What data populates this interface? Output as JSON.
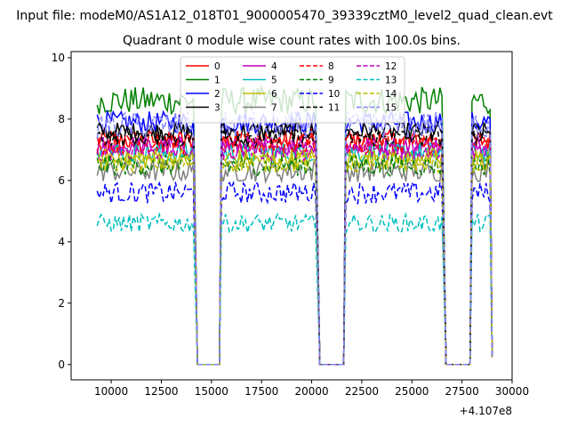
{
  "chart_data": {
    "type": "line",
    "suptitle": "Input file: modeM0/AS1A12_018T01_9000005470_39339cztM0_level2_quad_clean.evt",
    "title": "Quadrant 0 module wise count rates with 100.0s bins.",
    "xlabel": "",
    "ylabel": "",
    "x_offset_label": "+4.107e8",
    "xlim": [
      8000,
      30000
    ],
    "ylim": [
      -0.5,
      10.2
    ],
    "xticks": [
      10000,
      12500,
      15000,
      17500,
      20000,
      22500,
      25000,
      27500,
      30000
    ],
    "xtick_labels": [
      "10000",
      "12500",
      "15000",
      "17500",
      "20000",
      "22500",
      "25000",
      "27500",
      "30000"
    ],
    "yticks": [
      0,
      2,
      4,
      6,
      8,
      10
    ],
    "ytick_labels": [
      "0",
      "2",
      "4",
      "6",
      "8",
      "10"
    ],
    "grid": false,
    "legend_position": "upper-center",
    "legend_columns": 4,
    "segments": [
      {
        "start": 9300,
        "end": 14100,
        "edge_end": 14300,
        "zero_start": 14300
      },
      {
        "zero_end": 15400,
        "start": 15500,
        "end": 20200,
        "edge_end": 20400,
        "zero_start": 20400
      },
      {
        "zero_end": 21600,
        "start": 21700,
        "end": 26500,
        "edge_end": 26700,
        "zero_start": 26700
      },
      {
        "zero_end": 27900,
        "start": 28000,
        "end": 28900,
        "edge_end": 29000
      }
    ],
    "series": [
      {
        "name": "0",
        "color": "#ff0000",
        "dash": "solid",
        "level": 7.3,
        "noise": 0.35
      },
      {
        "name": "1",
        "color": "#008000",
        "dash": "solid",
        "level": 8.6,
        "noise": 0.45
      },
      {
        "name": "2",
        "color": "#0000ff",
        "dash": "solid",
        "level": 7.9,
        "noise": 0.35
      },
      {
        "name": "3",
        "color": "#000000",
        "dash": "solid",
        "level": 7.6,
        "noise": 0.3
      },
      {
        "name": "4",
        "color": "#bf00bf",
        "dash": "solid",
        "level": 7.1,
        "noise": 0.35
      },
      {
        "name": "5",
        "color": "#00bfbf",
        "dash": "solid",
        "level": 6.9,
        "noise": 0.35
      },
      {
        "name": "6",
        "color": "#bfbf00",
        "dash": "solid",
        "level": 6.7,
        "noise": 0.35
      },
      {
        "name": "7",
        "color": "#808080",
        "dash": "solid",
        "level": 6.3,
        "noise": 0.35
      },
      {
        "name": "8",
        "color": "#ff0000",
        "dash": "dashed",
        "level": 7.2,
        "noise": 0.35
      },
      {
        "name": "9",
        "color": "#008000",
        "dash": "dashed",
        "level": 6.5,
        "noise": 0.35
      },
      {
        "name": "10",
        "color": "#0000ff",
        "dash": "dashed",
        "level": 5.6,
        "noise": 0.35
      },
      {
        "name": "11",
        "color": "#000000",
        "dash": "dashed",
        "level": 7.4,
        "noise": 0.3
      },
      {
        "name": "12",
        "color": "#bf00bf",
        "dash": "dashed",
        "level": 7.0,
        "noise": 0.35
      },
      {
        "name": "13",
        "color": "#00bfbf",
        "dash": "dashed",
        "level": 4.6,
        "noise": 0.3
      },
      {
        "name": "14",
        "color": "#bfbf00",
        "dash": "dashed",
        "level": 6.6,
        "noise": 0.35
      },
      {
        "name": "15",
        "color": "#8080ff",
        "dash": "dashed",
        "level": 7.8,
        "noise": 0.45
      }
    ]
  }
}
